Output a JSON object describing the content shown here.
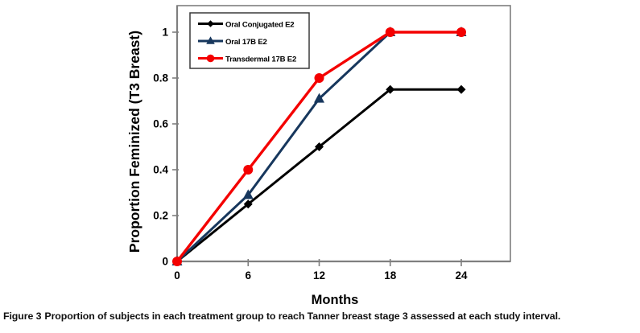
{
  "figure": {
    "caption_label": "Figure 3",
    "caption_text": "Proportion of subjects in each treatment group to reach Tanner breast stage 3 assessed at each study interval."
  },
  "chart_data": {
    "type": "line",
    "title": "",
    "xlabel": "Months",
    "ylabel": "Proportion Feminized (T3 Breast)",
    "x": [
      0,
      6,
      12,
      18,
      24
    ],
    "xtick_labels": [
      "0",
      "6",
      "12",
      "18",
      "24"
    ],
    "ytick_values": [
      0,
      0.2,
      0.4,
      0.6,
      0.8,
      1
    ],
    "ytick_labels": [
      "0",
      "0.2",
      "0.4",
      "0.6",
      "0.8",
      "1"
    ],
    "xlim": [
      0,
      28
    ],
    "ylim": [
      0,
      1.12
    ],
    "grid": false,
    "legend_position": "top-left-inside",
    "axis_color": "#7f7f7f",
    "text_color": "#000000",
    "series": [
      {
        "name": "Oral Conjugated E2",
        "color": "#000000",
        "marker": "diamond",
        "values": [
          0,
          0.25,
          0.5,
          0.75,
          0.75
        ]
      },
      {
        "name": "Oral 17B E2",
        "color": "#17375D",
        "marker": "triangle",
        "values": [
          0,
          0.29,
          0.71,
          1,
          1
        ]
      },
      {
        "name": "Transdermal 17B E2",
        "color": "#F40000",
        "marker": "circle",
        "values": [
          0,
          0.4,
          0.8,
          1,
          1
        ]
      }
    ]
  }
}
